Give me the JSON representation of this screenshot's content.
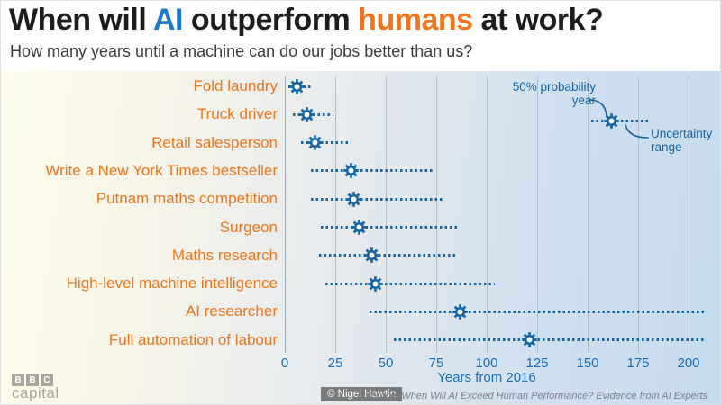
{
  "colors": {
    "accent_blue": "#1565a5",
    "tick_blue": "#1a6cb3",
    "title_blue": "#1e79c8",
    "orange": "#f0751c",
    "grid": "#b3bfc9",
    "bg_left": "#fdfdea",
    "bg_right": "#c5dbee"
  },
  "header": {
    "title": {
      "pre": "When will ",
      "ai": "AI",
      "mid": " outperform ",
      "humans": "humans",
      "post": " at work?"
    },
    "subtitle": "How many years until a machine can do our jobs better than us?"
  },
  "chart_data": {
    "type": "scatter",
    "subtype": "dot-with-uncertainty-range",
    "title": "When will AI outperform humans at work?",
    "subtitle": "How many years until a machine can do our jobs better than us?",
    "xlabel": "Years from 2016",
    "x_ticks": [
      0,
      25,
      50,
      75,
      100,
      125,
      150,
      175,
      200
    ],
    "xlim": [
      0,
      210
    ],
    "grid": "vertical-only",
    "marker": "gear",
    "items": [
      {
        "label": "Fold laundry",
        "point": 6,
        "range": [
          2,
          14
        ]
      },
      {
        "label": "Truck driver",
        "point": 11,
        "range": [
          4,
          24
        ]
      },
      {
        "label": "Retail salesperson",
        "point": 15,
        "range": [
          8,
          32
        ]
      },
      {
        "label": "Write a New York Times bestseller",
        "point": 33,
        "range": [
          13,
          73
        ]
      },
      {
        "label": "Putnam maths competition",
        "point": 34,
        "range": [
          13,
          78
        ]
      },
      {
        "label": "Surgeon",
        "point": 37,
        "range": [
          18,
          86
        ]
      },
      {
        "label": "Maths research",
        "point": 43,
        "range": [
          17,
          85
        ]
      },
      {
        "label": "High-level machine intelligence",
        "point": 45,
        "range": [
          20,
          104
        ]
      },
      {
        "label": "AI researcher",
        "point": 87,
        "range": [
          42,
          208
        ]
      },
      {
        "label": "Full automation of labour",
        "point": 121,
        "range": [
          54,
          208
        ]
      }
    ],
    "legend": {
      "point_label_line1": "50% probability",
      "point_label_line2": "year",
      "range_label_line1": "Uncertainty",
      "range_label_line2": "range",
      "sample_point": 162,
      "sample_range": [
        152,
        180
      ]
    }
  },
  "footer": {
    "brand_letters": [
      "B",
      "B",
      "C"
    ],
    "brand_name": "capital",
    "credit": "© Nigel Hawtin",
    "source": "Source: When Will AI Exceed Human Performance? Evidence from AI Experts"
  }
}
